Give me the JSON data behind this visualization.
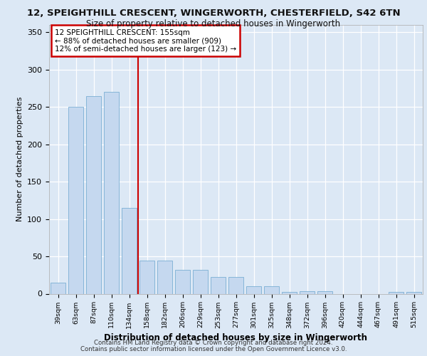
{
  "title_line1": "12, SPEIGHTHILL CRESCENT, WINGERWORTH, CHESTERFIELD, S42 6TN",
  "title_line2": "Size of property relative to detached houses in Wingerworth",
  "xlabel": "Distribution of detached houses by size in Wingerworth",
  "ylabel": "Number of detached properties",
  "categories": [
    "39sqm",
    "63sqm",
    "87sqm",
    "110sqm",
    "134sqm",
    "158sqm",
    "182sqm",
    "206sqm",
    "229sqm",
    "253sqm",
    "277sqm",
    "301sqm",
    "325sqm",
    "348sqm",
    "372sqm",
    "396sqm",
    "420sqm",
    "444sqm",
    "467sqm",
    "491sqm",
    "515sqm"
  ],
  "values": [
    15,
    250,
    265,
    270,
    115,
    44,
    44,
    32,
    32,
    22,
    22,
    10,
    10,
    2,
    3,
    3,
    0,
    0,
    0,
    2,
    2
  ],
  "bar_color": "#c5d8ef",
  "bar_edge_color": "#7bafd4",
  "vline_color": "#cc0000",
  "annotation_title": "12 SPEIGHTHILL CRESCENT: 155sqm",
  "annotation_line2": "← 88% of detached houses are smaller (909)",
  "annotation_line3": "12% of semi-detached houses are larger (123) →",
  "annotation_box_color": "#cc0000",
  "annotation_bg": "#ffffff",
  "ylim": [
    0,
    360
  ],
  "yticks": [
    0,
    50,
    100,
    150,
    200,
    250,
    300,
    350
  ],
  "background_color": "#dce8f5",
  "plot_bg": "#dce8f5",
  "grid_color": "#ffffff",
  "footer_line1": "Contains HM Land Registry data © Crown copyright and database right 2024.",
  "footer_line2": "Contains public sector information licensed under the Open Government Licence v3.0."
}
